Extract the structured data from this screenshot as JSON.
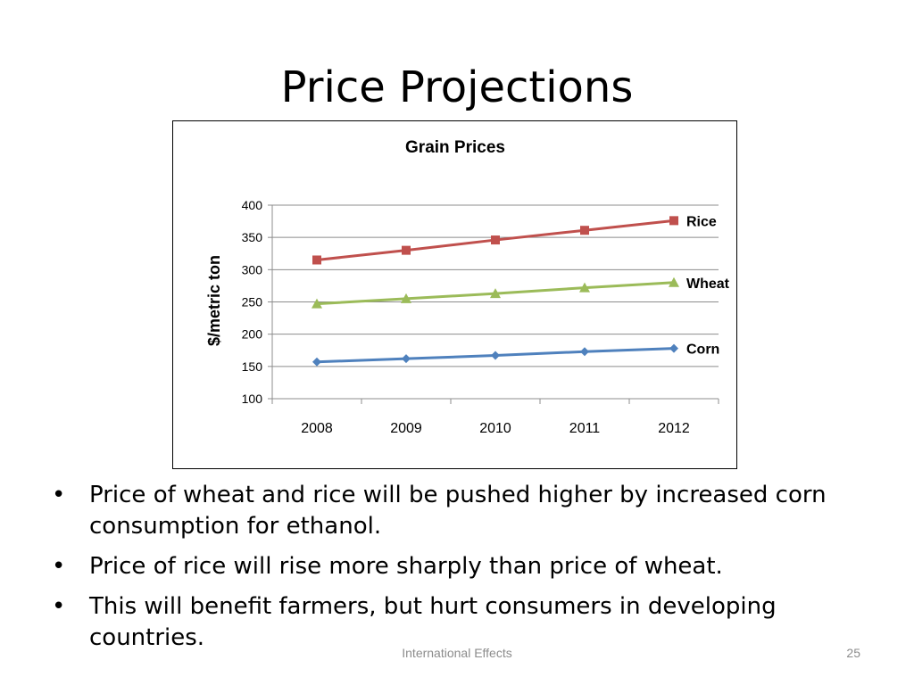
{
  "slide": {
    "title": "Price Projections",
    "footer": "International Effects",
    "page_number": "25",
    "bullet_marker": "•",
    "bullets": [
      "Price of wheat and rice will be pushed higher by increased corn consumption for ethanol.",
      "Price of rice will rise more sharply than price of wheat.",
      "This will benefit farmers, but hurt consumers in developing countries."
    ]
  },
  "chart_data": {
    "type": "line",
    "title": "Grain Prices",
    "xlabel": "",
    "ylabel": "$/metric ton",
    "categories": [
      "2008",
      "2009",
      "2010",
      "2011",
      "2012"
    ],
    "ylim": [
      100,
      400
    ],
    "yticks": [
      100,
      150,
      200,
      250,
      300,
      350,
      400
    ],
    "grid": true,
    "legend": "inline-right",
    "series": [
      {
        "name": "Rice",
        "values": [
          315,
          330,
          346,
          361,
          376
        ],
        "color": "#c0504d",
        "marker": "square"
      },
      {
        "name": "Wheat",
        "values": [
          247,
          255,
          263,
          272,
          280
        ],
        "color": "#9bbb59",
        "marker": "triangle"
      },
      {
        "name": "Corn",
        "values": [
          157,
          162,
          167,
          173,
          178
        ],
        "color": "#4f81bd",
        "marker": "diamond"
      }
    ]
  }
}
